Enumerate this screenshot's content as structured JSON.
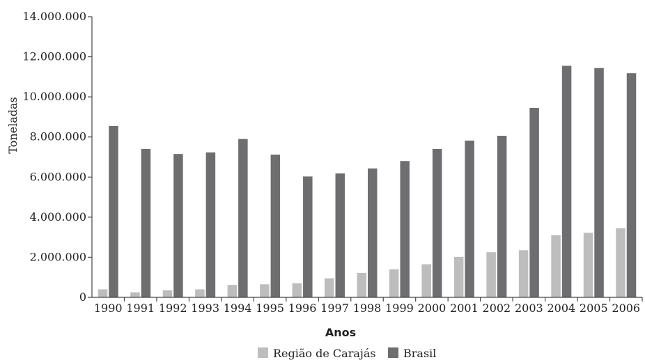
{
  "chart_data": {
    "type": "bar",
    "title": "",
    "xlabel": "Anos",
    "ylabel": "Toneladas",
    "categories": [
      "1990",
      "1991",
      "1992",
      "1993",
      "1994",
      "1995",
      "1996",
      "1997",
      "1998",
      "1999",
      "2000",
      "2001",
      "2002",
      "2003",
      "2004",
      "2005",
      "2006"
    ],
    "series": [
      {
        "name": "Região de Carajás",
        "color": "#bdbdbd",
        "values": [
          400000,
          250000,
          350000,
          400000,
          620000,
          650000,
          700000,
          950000,
          1220000,
          1400000,
          1650000,
          2020000,
          2250000,
          2350000,
          3100000,
          3220000,
          3450000
        ]
      },
      {
        "name": "Brasil",
        "color": "#6e6e70",
        "values": [
          8550000,
          7400000,
          7150000,
          7230000,
          7900000,
          7120000,
          6030000,
          6180000,
          6430000,
          6800000,
          7400000,
          7820000,
          8060000,
          9450000,
          11550000,
          11440000,
          11180000
        ]
      }
    ],
    "ylim": [
      0,
      14000000
    ],
    "yticks": [
      "0",
      "2.000.000",
      "4.000.000",
      "6.000.000",
      "8.000.000",
      "10.000.000",
      "12.000.000",
      "14.000.000"
    ],
    "grid": false,
    "legend": "bottom"
  }
}
